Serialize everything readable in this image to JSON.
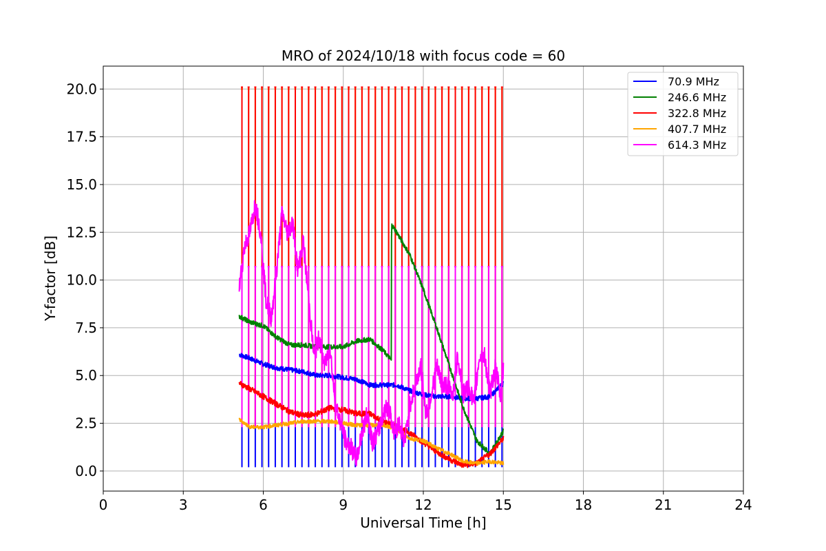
{
  "chart_data": {
    "type": "line",
    "title": "MRO of 2024/10/18 with focus code = 60",
    "xlabel": "Universal Time [h]",
    "ylabel": "Y-factor [dB]",
    "xlim": [
      0,
      24
    ],
    "ylim": [
      -1.05,
      21.2
    ],
    "xticks": [
      0,
      3,
      6,
      9,
      12,
      15,
      18,
      21,
      24
    ],
    "yticks": [
      0.0,
      2.5,
      5.0,
      7.5,
      10.0,
      12.5,
      15.0,
      17.5,
      20.0
    ],
    "xtick_labels": [
      "0",
      "3",
      "6",
      "9",
      "12",
      "15",
      "18",
      "21",
      "24"
    ],
    "ytick_labels": [
      "0.0",
      "2.5",
      "5.0",
      "7.5",
      "10.0",
      "12.5",
      "15.0",
      "17.5",
      "20.0"
    ],
    "grid": true,
    "legend_position": "top-right",
    "calibration_spikes": {
      "start_h": 5.2,
      "end_h": 15.0,
      "interval_h": 0.25,
      "levels": [
        {
          "series": "70.9 MHz",
          "low": 0.2
        },
        {
          "series": "407.7 MHz",
          "high": 20.0
        },
        {
          "series": "322.8 MHz",
          "high": 20.1
        },
        {
          "series": "614.3 MHz",
          "high": 10.7
        }
      ]
    },
    "series": [
      {
        "name": " 70.9 MHz",
        "color": "#0000ff",
        "x": [
          5.1,
          5.5,
          6.0,
          6.5,
          7.0,
          7.5,
          8.0,
          8.5,
          9.0,
          9.5,
          10.0,
          10.5,
          11.0,
          11.5,
          12.0,
          12.5,
          13.0,
          13.5,
          14.0,
          14.5,
          15.0
        ],
        "values": [
          6.1,
          5.9,
          5.6,
          5.4,
          5.3,
          5.2,
          5.0,
          5.0,
          4.9,
          4.8,
          4.5,
          4.5,
          4.5,
          4.2,
          4.0,
          3.9,
          3.9,
          3.8,
          3.8,
          3.9,
          4.6
        ]
      },
      {
        "name": "246.6 MHz",
        "color": "#008000",
        "x": [
          5.1,
          5.5,
          6.0,
          6.5,
          7.0,
          7.5,
          8.0,
          8.5,
          9.0,
          9.5,
          10.0,
          10.5,
          10.8,
          10.81,
          11.0,
          11.5,
          12.0,
          12.5,
          13.0,
          13.5,
          14.0,
          14.5,
          15.0
        ],
        "values": [
          8.1,
          7.8,
          7.6,
          7.0,
          6.6,
          6.6,
          6.5,
          6.5,
          6.5,
          6.8,
          6.9,
          6.3,
          5.8,
          12.9,
          12.5,
          11.3,
          9.5,
          7.5,
          5.4,
          3.3,
          1.6,
          0.9,
          2.1
        ]
      },
      {
        "name": "322.8 MHz",
        "color": "#ff0000",
        "x": [
          5.1,
          5.5,
          6.0,
          6.5,
          7.0,
          7.5,
          8.0,
          8.5,
          9.0,
          9.5,
          10.0,
          10.5,
          11.0,
          11.5,
          12.0,
          12.5,
          13.0,
          13.5,
          14.0,
          14.5,
          15.0
        ],
        "values": [
          4.6,
          4.3,
          3.9,
          3.5,
          3.1,
          2.9,
          3.0,
          3.3,
          3.2,
          3.0,
          3.0,
          2.6,
          2.3,
          2.0,
          1.5,
          1.0,
          0.6,
          0.3,
          0.4,
          0.9,
          1.7
        ]
      },
      {
        "name": "407.7 MHz",
        "color": "#ffa500",
        "x": [
          5.1,
          5.5,
          6.0,
          6.5,
          7.0,
          7.5,
          8.0,
          8.5,
          9.0,
          9.5,
          10.0,
          10.5,
          11.0,
          11.5,
          12.0,
          12.5,
          13.0,
          13.5,
          14.0,
          14.5,
          15.0
        ],
        "values": [
          2.7,
          2.3,
          2.3,
          2.4,
          2.5,
          2.6,
          2.6,
          2.6,
          2.5,
          2.4,
          2.4,
          2.4,
          2.2,
          1.7,
          1.6,
          1.2,
          0.9,
          0.5,
          0.4,
          0.5,
          0.4
        ]
      },
      {
        "name": "614.3 MHz",
        "color": "#ff00ff",
        "x": [
          5.1,
          5.3,
          5.5,
          5.7,
          5.9,
          6.1,
          6.3,
          6.5,
          6.7,
          6.9,
          7.1,
          7.3,
          7.5,
          7.7,
          7.9,
          8.1,
          8.3,
          8.5,
          8.7,
          8.9,
          9.1,
          9.3,
          9.5,
          9.7,
          9.9,
          10.1,
          10.3,
          10.5,
          10.7,
          10.9,
          11.1,
          11.3,
          11.5,
          11.7,
          11.9,
          12.1,
          12.3,
          12.5,
          12.7,
          12.9,
          13.1,
          13.3,
          13.5,
          13.7,
          13.9,
          14.1,
          14.3,
          14.5,
          14.7,
          14.9,
          15.0
        ],
        "values": [
          9.6,
          11.8,
          12.5,
          14.0,
          12.5,
          9.0,
          8.0,
          10.5,
          13.5,
          12.5,
          13.0,
          10.5,
          12.0,
          9.0,
          6.0,
          7.0,
          5.5,
          6.5,
          3.5,
          2.5,
          1.5,
          1.2,
          0.6,
          2.0,
          3.0,
          1.5,
          2.0,
          3.0,
          3.5,
          2.0,
          2.5,
          1.5,
          3.5,
          4.5,
          5.5,
          3.0,
          4.0,
          5.5,
          4.5,
          4.5,
          4.0,
          6.0,
          4.0,
          4.5,
          3.5,
          6.0,
          6.0,
          4.0,
          5.5,
          3.8,
          5.5
        ]
      }
    ]
  }
}
